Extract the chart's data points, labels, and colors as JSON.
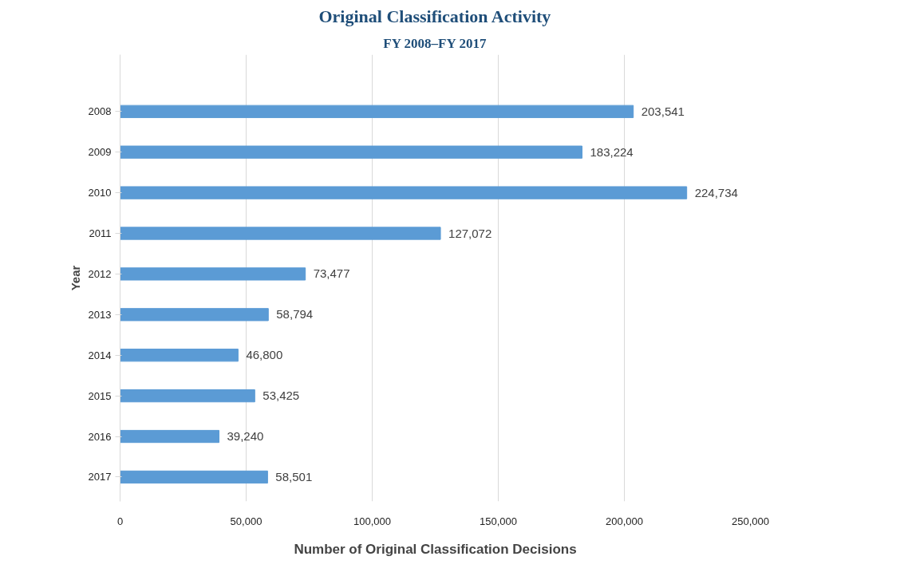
{
  "chart_data": {
    "type": "bar",
    "orientation": "horizontal",
    "title": "Original Classification Activity",
    "subtitle": "FY 2008–FY 2017",
    "xlabel": "Number of Original Classification Decisions",
    "ylabel": "Year",
    "categories": [
      "2008",
      "2009",
      "2010",
      "2011",
      "2012",
      "2013",
      "2014",
      "2015",
      "2016",
      "2017"
    ],
    "values": [
      203541,
      183224,
      224734,
      127072,
      73477,
      58794,
      46800,
      53425,
      39240,
      58501
    ],
    "color": "#5b9bd5",
    "value_labels": [
      "203,541",
      "183,224",
      "224,734",
      "127,072",
      "73,477",
      "58,794",
      "46,800",
      "53,425",
      "39,240",
      "58,501"
    ],
    "xlim": [
      0,
      250000
    ],
    "xticks": [
      {
        "value": 0,
        "label": "0"
      },
      {
        "value": 50000,
        "label": "50,000"
      },
      {
        "value": 100000,
        "label": "100,000"
      },
      {
        "value": 150000,
        "label": "150,000"
      },
      {
        "value": 200000,
        "label": "200,000"
      },
      {
        "value": 250000,
        "label": "250,000"
      }
    ],
    "grid": "x"
  }
}
